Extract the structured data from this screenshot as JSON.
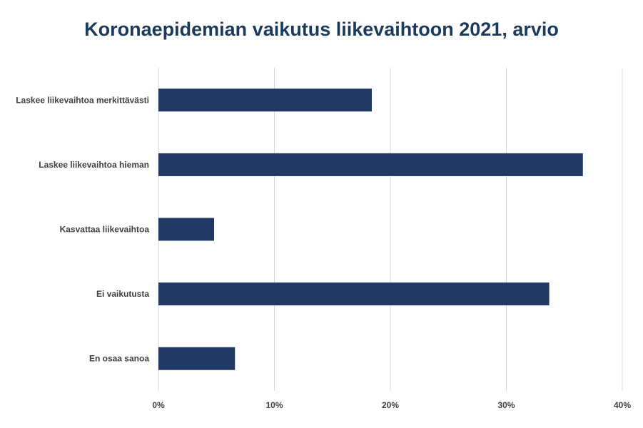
{
  "chart_data": {
    "type": "bar",
    "orientation": "horizontal",
    "title": "Koronaepidemian vaikutus liikevaihtoon 2021, arvio",
    "categories": [
      "Laskee liikevaihtoa merkittävästi",
      "Laskee liikevaihtoa hieman",
      "Kasvattaa liikevaihtoa",
      "Ei vaikutusta",
      "En osaa sanoa"
    ],
    "values": [
      18.4,
      36.6,
      4.8,
      33.7,
      6.6
    ],
    "xlim": [
      0,
      40
    ],
    "xticks": [
      0,
      10,
      20,
      30,
      40
    ],
    "xtick_labels": [
      "0%",
      "10%",
      "20%",
      "30%",
      "40%"
    ],
    "grid": true,
    "bar_color": "#1f3864"
  }
}
